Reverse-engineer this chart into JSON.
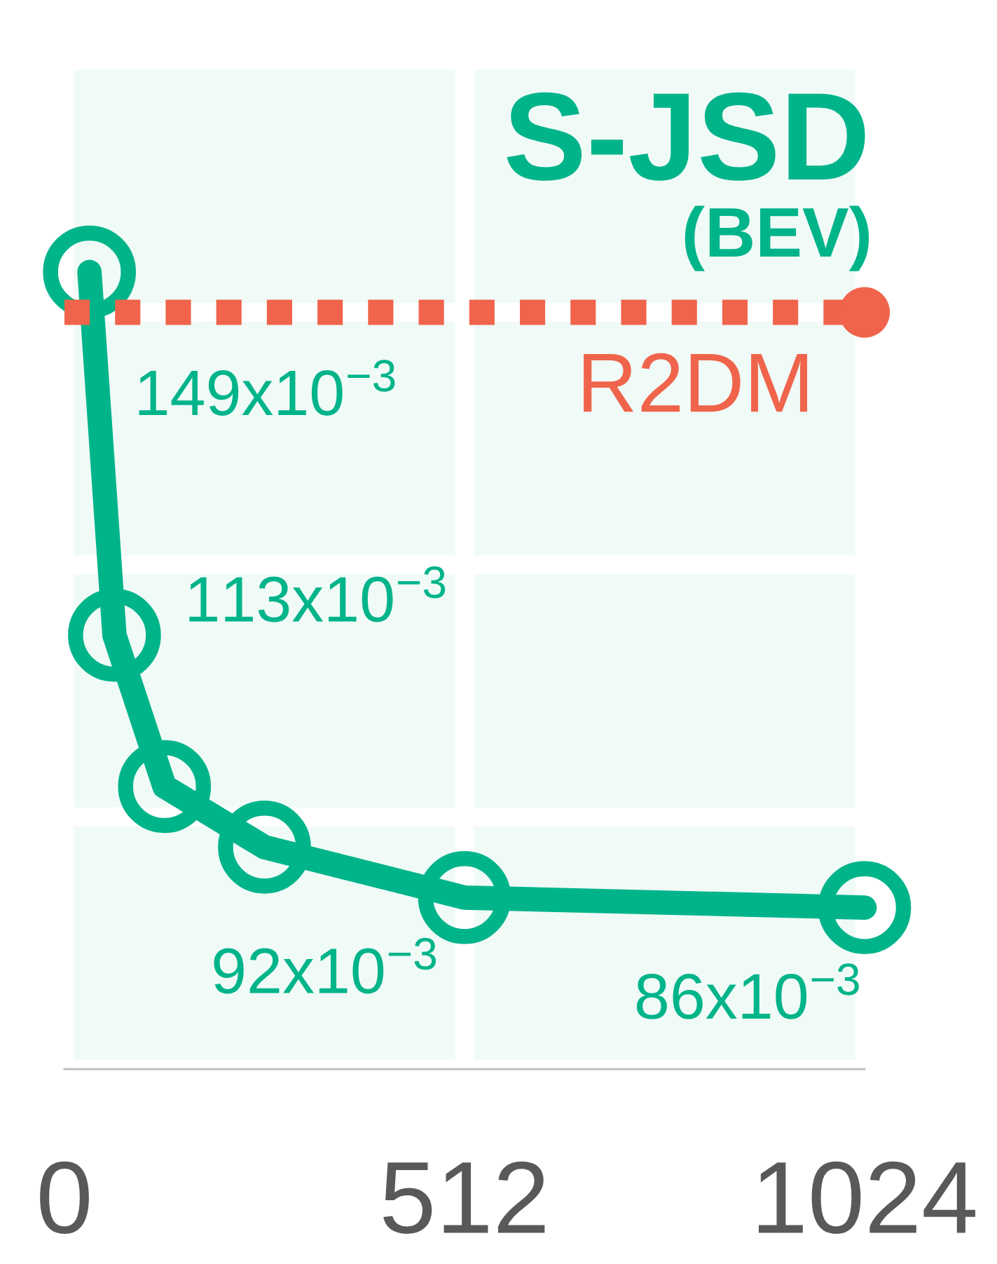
{
  "chart_data": {
    "type": "line",
    "title": "S-JSD",
    "subtitle": "(BEV)",
    "x": [
      32,
      64,
      128,
      256,
      512,
      1024
    ],
    "xlim": [
      0,
      1024
    ],
    "xticks": [
      0,
      512,
      1024
    ],
    "tick_labels": "x",
    "grid": true,
    "marker": "circle",
    "line_style": "solid",
    "series": [
      {
        "color": "#00b48a",
        "values": [
          0.149,
          0.113,
          0.098,
          0.092,
          0.087,
          0.086
        ],
        "value_labels": [
          "149x10$^{−3}$",
          "113x10$^{−3}$",
          null,
          "92x10$^{−3}$",
          null,
          "86x10$^{−3}$"
        ]
      },
      {
        "name": "R2DM",
        "type": "scatter",
        "color": "#ef644b",
        "x": [
          1024
        ],
        "values": [
          0.145
        ]
      }
    ],
    "ref_lines": [
      {
        "axis": "y",
        "value": 0.145,
        "color": "#ef644b",
        "line_style": "dotted"
      }
    ]
  }
}
